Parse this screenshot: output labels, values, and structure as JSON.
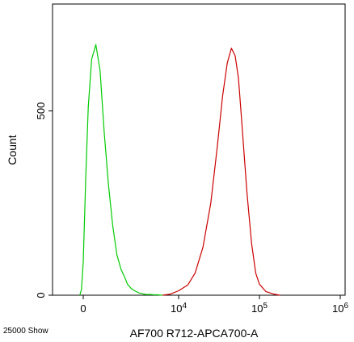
{
  "chart_data": {
    "type": "line",
    "xlabel": "AF700 R712-APCA700-A",
    "ylabel": "Count",
    "x_scale": "biexponential",
    "ylim": [
      0,
      790
    ],
    "grid": false,
    "x_ticks": [
      {
        "value": 0,
        "base": "0",
        "exp": ""
      },
      {
        "value": 10000,
        "base": "10",
        "exp": "4"
      },
      {
        "value": 100000,
        "base": "10",
        "exp": "5"
      },
      {
        "value": 1000000,
        "base": "10",
        "exp": "6"
      }
    ],
    "y_ticks": [
      {
        "value": 0,
        "label": "0"
      },
      {
        "value": 500,
        "label": "500"
      }
    ],
    "series": [
      {
        "color": "#00cc00",
        "x": [
          -120,
          -60,
          0,
          60,
          120,
          200,
          300,
          400,
          500,
          600,
          700,
          800,
          900,
          1000,
          1100,
          1300,
          1500,
          1700,
          1800,
          2000,
          2200,
          2500,
          3000,
          3500,
          4000,
          5000
        ],
        "y": [
          0,
          15,
          90,
          320,
          510,
          640,
          680,
          610,
          440,
          300,
          190,
          110,
          70,
          45,
          30,
          18,
          12,
          8,
          6,
          5,
          3,
          2,
          2,
          1,
          1,
          0
        ]
      },
      {
        "color": "#cc0000",
        "x": [
          5000,
          7000,
          10000,
          13000,
          16000,
          20000,
          25000,
          30000,
          35000,
          40000,
          45000,
          50000,
          55000,
          60000,
          70000,
          80000,
          90000,
          100000,
          120000,
          150000,
          180000
        ],
        "y": [
          0,
          3,
          12,
          28,
          60,
          130,
          250,
          400,
          540,
          630,
          670,
          650,
          590,
          480,
          280,
          140,
          60,
          30,
          10,
          3,
          0
        ]
      }
    ]
  },
  "footer": {
    "note": "25000 Show"
  }
}
